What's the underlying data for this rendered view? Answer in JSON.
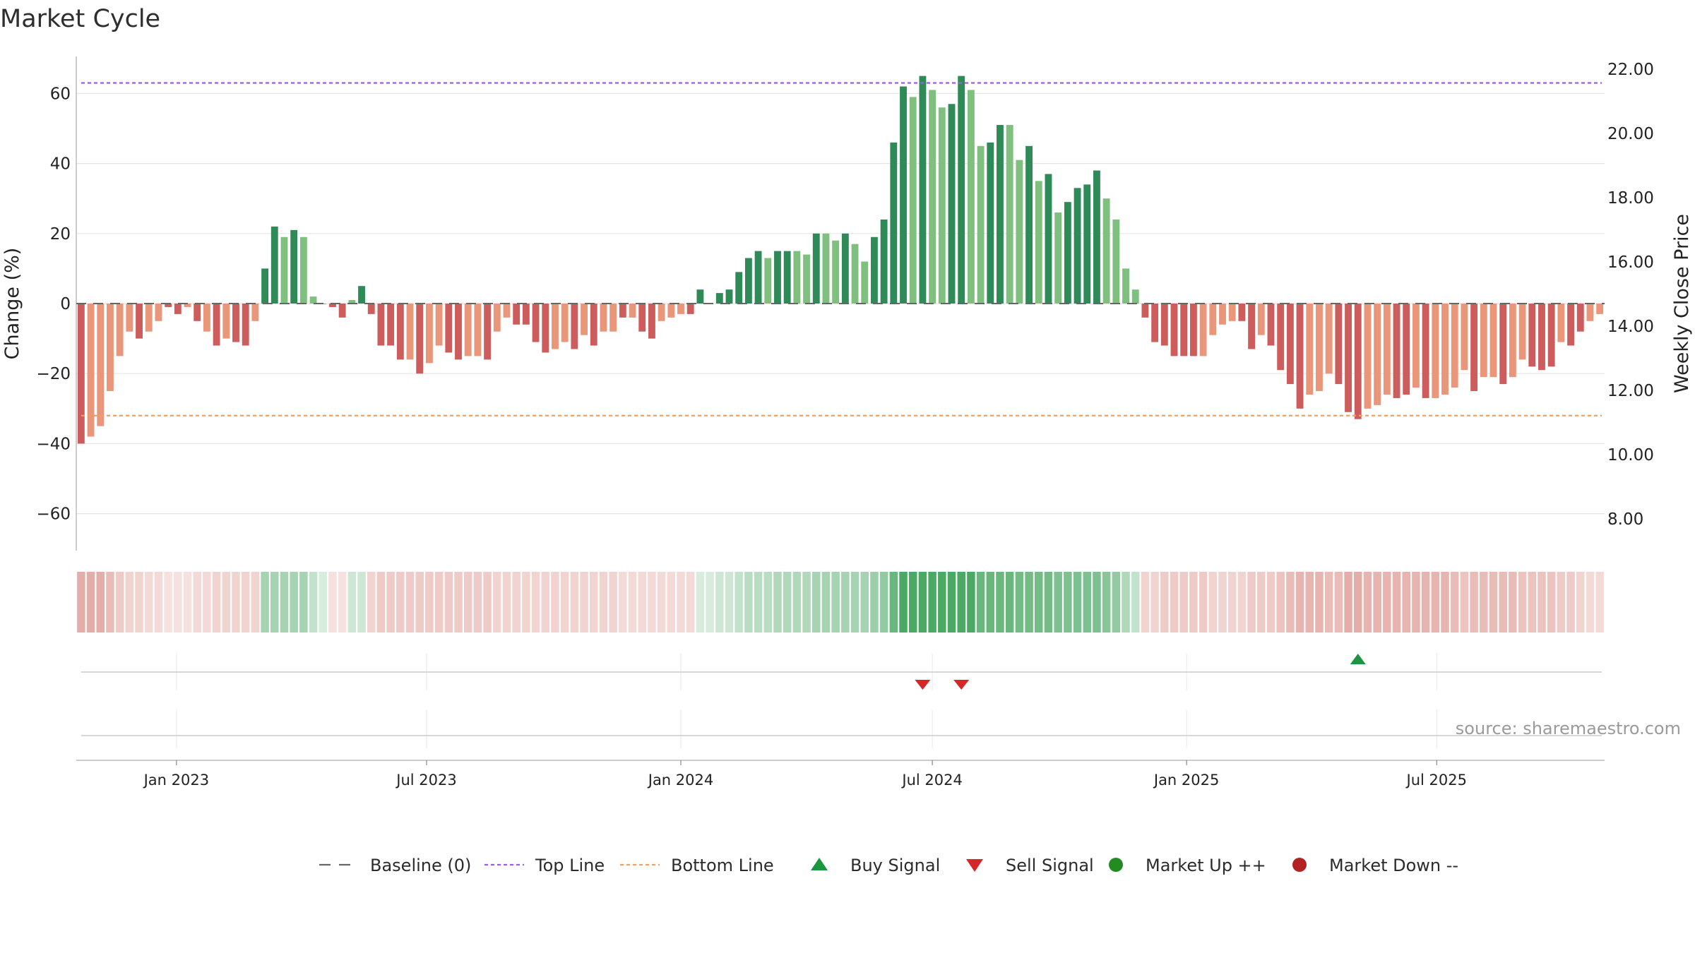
{
  "title": "Market Cycle",
  "source": "source: sharemaestro.com",
  "colors": {
    "strong_up": "#2e8b57",
    "weak_up": "#7fc07f",
    "strong_down": "#cd5c5c",
    "weak_down": "#e9967a",
    "top_line": "#9b5de5",
    "bottom_line": "#f0a060",
    "baseline": "#666666",
    "buy": "#1a9641",
    "sell": "#d62728",
    "market_up": "#228b22",
    "market_down": "#b22222"
  },
  "chart_data": {
    "type": "bar",
    "title": "Market Cycle",
    "x_start": "2022-10-24",
    "x_step_days": 7,
    "y_left": {
      "label": "Change (%)",
      "ticks": [
        60,
        40,
        20,
        0,
        -20,
        -40,
        -60
      ],
      "lim": [
        -70,
        70
      ]
    },
    "y_right": {
      "label": "Weekly Close Price",
      "ticks": [
        "22.00",
        "20.00",
        "18.00",
        "16.00",
        "14.00",
        "12.00",
        "10.00",
        "8.00"
      ],
      "lim": [
        7.2,
        22.5
      ]
    },
    "x_ticks": [
      "Jan 2023",
      "Jul 2023",
      "Jan 2024",
      "Jul 2024",
      "Jan 2025",
      "Jul 2025"
    ],
    "x_tick_dates": [
      "2023-01-01",
      "2023-07-01",
      "2024-01-01",
      "2024-07-01",
      "2025-01-01",
      "2025-07-01"
    ],
    "top_line": 63,
    "bottom_line": -32,
    "baseline": 0,
    "values": [
      -40,
      -38,
      -35,
      -25,
      -15,
      -8,
      -10,
      -8,
      -5,
      -1,
      -3,
      -1,
      -5,
      -8,
      -12,
      -10,
      -11,
      -12,
      -5,
      10,
      22,
      19,
      21,
      19,
      2,
      0,
      -1,
      -4,
      1,
      5,
      -3,
      -12,
      -12,
      -16,
      -16,
      -20,
      -17,
      -12,
      -14,
      -16,
      -15,
      -15,
      -16,
      -8,
      -4,
      -6,
      -6,
      -11,
      -14,
      -13,
      -11,
      -13,
      -9,
      -12,
      -8,
      -8,
      -4,
      -4,
      -8,
      -10,
      -5,
      -4,
      -3,
      -3,
      4,
      0,
      3,
      4,
      9,
      13,
      15,
      13,
      15,
      15,
      15,
      14,
      20,
      20,
      18,
      20,
      17,
      12,
      19,
      24,
      46,
      62,
      59,
      65,
      61,
      56,
      57,
      65,
      61,
      45,
      46,
      51,
      51,
      41,
      45,
      35,
      37,
      26,
      29,
      33,
      34,
      38,
      30,
      24,
      10,
      4,
      -4,
      -11,
      -12,
      -15,
      -15,
      -15,
      -15,
      -9,
      -6,
      -5,
      -5,
      -13,
      -9,
      -12,
      -19,
      -23,
      -30,
      -26,
      -25,
      -20,
      -23,
      -31,
      -33,
      -30,
      -29,
      -26,
      -27,
      -26,
      -24,
      -27,
      -27,
      -26,
      -24,
      -19,
      -25,
      -21,
      -21,
      -23,
      -21,
      -16,
      -18,
      -19,
      -18,
      -11,
      -12,
      -8,
      -5,
      -3
    ],
    "strength": [
      1,
      0,
      0,
      0,
      0,
      0,
      1,
      0,
      0,
      1,
      1,
      0,
      1,
      0,
      1,
      0,
      1,
      1,
      0,
      1,
      1,
      0,
      1,
      0,
      0,
      0,
      1,
      1,
      0,
      1,
      1,
      1,
      1,
      1,
      0,
      1,
      0,
      0,
      1,
      1,
      0,
      0,
      1,
      0,
      0,
      1,
      1,
      1,
      1,
      0,
      0,
      1,
      0,
      1,
      0,
      0,
      1,
      0,
      1,
      1,
      0,
      0,
      0,
      1,
      1,
      0,
      1,
      1,
      1,
      1,
      1,
      0,
      1,
      1,
      0,
      0,
      1,
      0,
      0,
      1,
      0,
      0,
      1,
      1,
      1,
      1,
      0,
      1,
      0,
      0,
      1,
      1,
      0,
      0,
      1,
      1,
      0,
      0,
      1,
      0,
      1,
      0,
      1,
      1,
      1,
      1,
      0,
      0,
      0,
      0,
      1,
      1,
      1,
      1,
      1,
      1,
      0,
      0,
      0,
      0,
      1,
      1,
      0,
      1,
      1,
      1,
      1,
      0,
      0,
      0,
      1,
      1,
      1,
      0,
      0,
      0,
      1,
      1,
      0,
      1,
      0,
      0,
      0,
      0,
      1,
      0,
      0,
      1,
      0,
      0,
      1,
      1,
      1,
      0,
      1,
      1,
      0,
      0
    ],
    "heat_strip": [
      0.55,
      0.55,
      0.55,
      0.45,
      0.35,
      0.3,
      0.3,
      0.25,
      0.25,
      0.2,
      0.2,
      0.2,
      0.25,
      0.25,
      0.3,
      0.3,
      0.3,
      0.3,
      0.3,
      0.45,
      0.45,
      0.45,
      0.45,
      0.45,
      0.3,
      0.2,
      0.2,
      0.2,
      0.25,
      0.25,
      0.3,
      0.35,
      0.35,
      0.35,
      0.35,
      0.35,
      0.35,
      0.35,
      0.35,
      0.35,
      0.35,
      0.35,
      0.35,
      0.3,
      0.3,
      0.3,
      0.3,
      0.3,
      0.3,
      0.3,
      0.3,
      0.3,
      0.3,
      0.3,
      0.3,
      0.3,
      0.25,
      0.25,
      0.25,
      0.25,
      0.25,
      0.25,
      0.25,
      0.25,
      0.2,
      0.2,
      0.25,
      0.25,
      0.3,
      0.35,
      0.35,
      0.35,
      0.4,
      0.4,
      0.4,
      0.4,
      0.45,
      0.45,
      0.45,
      0.45,
      0.45,
      0.45,
      0.5,
      0.55,
      0.75,
      0.9,
      0.9,
      0.9,
      0.9,
      0.9,
      0.9,
      0.9,
      0.9,
      0.75,
      0.75,
      0.75,
      0.75,
      0.7,
      0.7,
      0.7,
      0.7,
      0.65,
      0.65,
      0.65,
      0.65,
      0.65,
      0.6,
      0.55,
      0.4,
      0.3,
      0.3,
      0.3,
      0.35,
      0.35,
      0.35,
      0.35,
      0.35,
      0.3,
      0.3,
      0.3,
      0.3,
      0.35,
      0.35,
      0.35,
      0.4,
      0.45,
      0.5,
      0.5,
      0.5,
      0.45,
      0.45,
      0.55,
      0.55,
      0.5,
      0.5,
      0.5,
      0.5,
      0.5,
      0.5,
      0.5,
      0.5,
      0.5,
      0.45,
      0.4,
      0.45,
      0.45,
      0.45,
      0.45,
      0.45,
      0.4,
      0.4,
      0.4,
      0.4,
      0.35,
      0.35,
      0.3,
      0.25,
      0.25
    ],
    "buy_signals": [
      132
    ],
    "sell_signals": [
      87,
      91
    ],
    "legend": [
      "Baseline (0)",
      "Top Line",
      "Bottom Line",
      "Buy Signal",
      "Sell Signal",
      "Market Up ++",
      "Market Down --"
    ],
    "legend_position": "bottom",
    "grid": true
  }
}
